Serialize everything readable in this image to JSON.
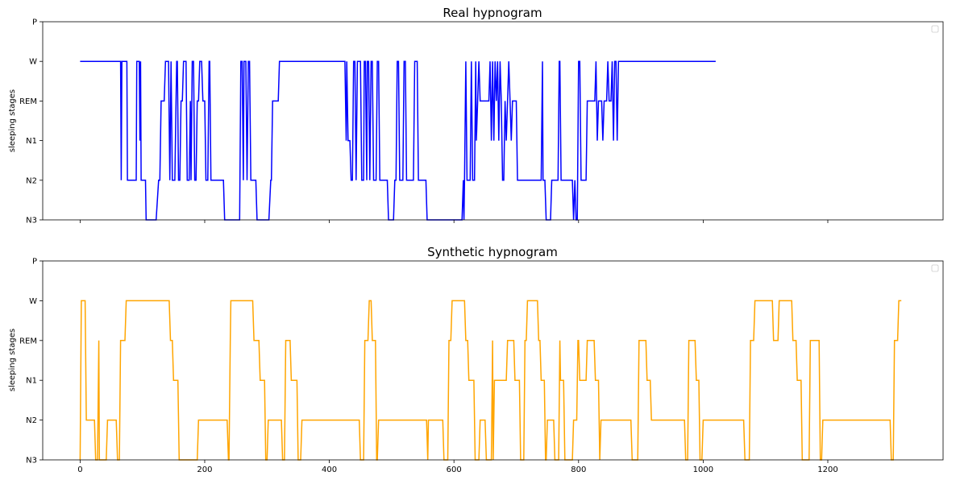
{
  "chart_data": [
    {
      "type": "line",
      "title": "Real hypnogram",
      "ylabel": "sleeping stages",
      "yticks": [
        "P",
        "W",
        "REM",
        "N1",
        "N2",
        "N3"
      ],
      "xlim": [
        -60,
        1385
      ],
      "xticks": [
        0,
        200,
        400,
        600,
        800,
        1000,
        1200
      ],
      "show_xtick_labels": false,
      "legend": "top-right (empty)",
      "grid": false,
      "color": "#0000ff",
      "points": [
        [
          0,
          "W"
        ],
        [
          65,
          "W"
        ],
        [
          66,
          "N2"
        ],
        [
          67,
          "W"
        ],
        [
          75,
          "W"
        ],
        [
          76,
          "N2"
        ],
        [
          90,
          "N2"
        ],
        [
          91,
          "W"
        ],
        [
          95,
          "W"
        ],
        [
          96,
          "N1"
        ],
        [
          97,
          "W"
        ],
        [
          98,
          "N2"
        ],
        [
          105,
          "N2"
        ],
        [
          106,
          "N3"
        ],
        [
          122,
          "N3"
        ],
        [
          126,
          "N2"
        ],
        [
          128,
          "N2"
        ],
        [
          130,
          "REM"
        ],
        [
          135,
          "REM"
        ],
        [
          137,
          "W"
        ],
        [
          142,
          "W"
        ],
        [
          144,
          "N2"
        ],
        [
          146,
          "W"
        ],
        [
          148,
          "N2"
        ],
        [
          152,
          "N2"
        ],
        [
          154,
          "REM"
        ],
        [
          155,
          "W"
        ],
        [
          156,
          "W"
        ],
        [
          158,
          "N2"
        ],
        [
          160,
          "N2"
        ],
        [
          162,
          "REM"
        ],
        [
          164,
          "REM"
        ],
        [
          166,
          "W"
        ],
        [
          170,
          "W"
        ],
        [
          172,
          "N2"
        ],
        [
          175,
          "N2"
        ],
        [
          177,
          "REM"
        ],
        [
          178,
          "N2"
        ],
        [
          180,
          "W"
        ],
        [
          182,
          "W"
        ],
        [
          184,
          "N2"
        ],
        [
          186,
          "N2"
        ],
        [
          188,
          "REM"
        ],
        [
          190,
          "REM"
        ],
        [
          192,
          "W"
        ],
        [
          195,
          "W"
        ],
        [
          197,
          "REM"
        ],
        [
          200,
          "REM"
        ],
        [
          202,
          "N2"
        ],
        [
          205,
          "N2"
        ],
        [
          207,
          "W"
        ],
        [
          208,
          "W"
        ],
        [
          210,
          "N2"
        ],
        [
          230,
          "N2"
        ],
        [
          232,
          "N3"
        ],
        [
          256,
          "N3"
        ],
        [
          258,
          "W"
        ],
        [
          260,
          "W"
        ],
        [
          262,
          "N2"
        ],
        [
          263,
          "W"
        ],
        [
          266,
          "W"
        ],
        [
          268,
          "N2"
        ],
        [
          270,
          "W"
        ],
        [
          272,
          "W"
        ],
        [
          274,
          "N2"
        ],
        [
          282,
          "N2"
        ],
        [
          284,
          "N3"
        ],
        [
          303,
          "N3"
        ],
        [
          306,
          "N2"
        ],
        [
          307,
          "N2"
        ],
        [
          309,
          "REM"
        ],
        [
          318,
          "REM"
        ],
        [
          320,
          "W"
        ],
        [
          425,
          "W"
        ],
        [
          427,
          "N1"
        ],
        [
          428,
          "W"
        ],
        [
          430,
          "N1"
        ],
        [
          433,
          "N1"
        ],
        [
          435,
          "N2"
        ],
        [
          437,
          "N2"
        ],
        [
          439,
          "W"
        ],
        [
          441,
          "W"
        ],
        [
          443,
          "N2"
        ],
        [
          445,
          "W"
        ],
        [
          450,
          "W"
        ],
        [
          452,
          "N2"
        ],
        [
          455,
          "N2"
        ],
        [
          456,
          "W"
        ],
        [
          458,
          "W"
        ],
        [
          460,
          "N2"
        ],
        [
          461,
          "W"
        ],
        [
          463,
          "W"
        ],
        [
          465,
          "N2"
        ],
        [
          467,
          "W"
        ],
        [
          469,
          "W"
        ],
        [
          471,
          "N2"
        ],
        [
          475,
          "N2"
        ],
        [
          477,
          "W"
        ],
        [
          479,
          "W"
        ],
        [
          481,
          "N2"
        ],
        [
          493,
          "N2"
        ],
        [
          495,
          "N3"
        ],
        [
          503,
          "N3"
        ],
        [
          505,
          "N2"
        ],
        [
          507,
          "N2"
        ],
        [
          509,
          "W"
        ],
        [
          511,
          "W"
        ],
        [
          513,
          "N2"
        ],
        [
          518,
          "N2"
        ],
        [
          520,
          "W"
        ],
        [
          522,
          "W"
        ],
        [
          524,
          "N2"
        ],
        [
          535,
          "N2"
        ],
        [
          537,
          "W"
        ],
        [
          541,
          "W"
        ],
        [
          543,
          "N2"
        ],
        [
          555,
          "N2"
        ],
        [
          557,
          "N3"
        ],
        [
          613,
          "N3"
        ],
        [
          615,
          "N2"
        ],
        [
          616,
          "N3"
        ],
        [
          617,
          "N2"
        ],
        [
          619,
          "W"
        ],
        [
          621,
          "N2"
        ],
        [
          626,
          "N2"
        ],
        [
          628,
          "W"
        ],
        [
          630,
          "N2"
        ],
        [
          633,
          "N2"
        ],
        [
          635,
          "W"
        ],
        [
          636,
          "N1"
        ],
        [
          638,
          "REM"
        ],
        [
          640,
          "W"
        ],
        [
          642,
          "REM"
        ],
        [
          656,
          "REM"
        ],
        [
          658,
          "W"
        ],
        [
          660,
          "N1"
        ],
        [
          662,
          "W"
        ],
        [
          664,
          "N1"
        ],
        [
          666,
          "W"
        ],
        [
          668,
          "REM"
        ],
        [
          670,
          "W"
        ],
        [
          672,
          "N1"
        ],
        [
          674,
          "W"
        ],
        [
          676,
          "REM"
        ],
        [
          678,
          "N2"
        ],
        [
          680,
          "N2"
        ],
        [
          682,
          "REM"
        ],
        [
          684,
          "N1"
        ],
        [
          686,
          "REM"
        ],
        [
          688,
          "W"
        ],
        [
          690,
          "REM"
        ],
        [
          692,
          "N1"
        ],
        [
          694,
          "REM"
        ],
        [
          700,
          "REM"
        ],
        [
          702,
          "N2"
        ],
        [
          740,
          "N2"
        ],
        [
          742,
          "W"
        ],
        [
          743,
          "N2"
        ],
        [
          746,
          "N2"
        ],
        [
          748,
          "N3"
        ],
        [
          755,
          "N3"
        ],
        [
          757,
          "N2"
        ],
        [
          767,
          "N2"
        ],
        [
          769,
          "W"
        ],
        [
          770,
          "W"
        ],
        [
          772,
          "N2"
        ],
        [
          790,
          "N2"
        ],
        [
          792,
          "N3"
        ],
        [
          794,
          "N2"
        ],
        [
          796,
          "N3"
        ],
        [
          798,
          "N3"
        ],
        [
          800,
          "W"
        ],
        [
          802,
          "W"
        ],
        [
          804,
          "N2"
        ],
        [
          812,
          "N2"
        ],
        [
          814,
          "REM"
        ],
        [
          826,
          "REM"
        ],
        [
          828,
          "W"
        ],
        [
          830,
          "N1"
        ],
        [
          832,
          "REM"
        ],
        [
          837,
          "REM"
        ],
        [
          839,
          "N1"
        ],
        [
          841,
          "REM"
        ],
        [
          845,
          "REM"
        ],
        [
          847,
          "W"
        ],
        [
          849,
          "REM"
        ],
        [
          852,
          "REM"
        ],
        [
          854,
          "W"
        ],
        [
          856,
          "N1"
        ],
        [
          858,
          "W"
        ],
        [
          860,
          "W"
        ],
        [
          862,
          "N1"
        ],
        [
          864,
          "W"
        ],
        [
          1020,
          "W"
        ]
      ]
    },
    {
      "type": "line",
      "title": "Synthetic hypnogram",
      "ylabel": "sleeping stages",
      "yticks": [
        "P",
        "W",
        "REM",
        "N1",
        "N2",
        "N3"
      ],
      "xlim": [
        -60,
        1385
      ],
      "xticks": [
        0,
        200,
        400,
        600,
        800,
        1000,
        1200
      ],
      "show_xtick_labels": true,
      "legend": "top-right (empty)",
      "grid": false,
      "color": "#ffa500",
      "points": [
        [
          0,
          "N3"
        ],
        [
          2,
          "W"
        ],
        [
          8,
          "W"
        ],
        [
          10,
          "N2"
        ],
        [
          23,
          "N2"
        ],
        [
          25,
          "N3"
        ],
        [
          28,
          "N3"
        ],
        [
          30,
          "REM"
        ],
        [
          31,
          "N3"
        ],
        [
          42,
          "N3"
        ],
        [
          44,
          "N2"
        ],
        [
          58,
          "N2"
        ],
        [
          60,
          "N3"
        ],
        [
          63,
          "N3"
        ],
        [
          65,
          "REM"
        ],
        [
          72,
          "REM"
        ],
        [
          74,
          "W"
        ],
        [
          143,
          "W"
        ],
        [
          145,
          "REM"
        ],
        [
          148,
          "REM"
        ],
        [
          150,
          "N1"
        ],
        [
          157,
          "N1"
        ],
        [
          159,
          "N3"
        ],
        [
          188,
          "N3"
        ],
        [
          190,
          "N2"
        ],
        [
          236,
          "N2"
        ],
        [
          238,
          "N3"
        ],
        [
          239,
          "N3"
        ],
        [
          241,
          "REM"
        ],
        [
          242,
          "W"
        ],
        [
          277,
          "W"
        ],
        [
          279,
          "REM"
        ],
        [
          287,
          "REM"
        ],
        [
          289,
          "N1"
        ],
        [
          296,
          "N1"
        ],
        [
          298,
          "N3"
        ],
        [
          300,
          "N3"
        ],
        [
          302,
          "N2"
        ],
        [
          323,
          "N2"
        ],
        [
          325,
          "N3"
        ],
        [
          328,
          "N3"
        ],
        [
          330,
          "REM"
        ],
        [
          337,
          "REM"
        ],
        [
          339,
          "N1"
        ],
        [
          348,
          "N1"
        ],
        [
          350,
          "N3"
        ],
        [
          354,
          "N3"
        ],
        [
          356,
          "N2"
        ],
        [
          448,
          "N2"
        ],
        [
          450,
          "N3"
        ],
        [
          455,
          "N3"
        ],
        [
          457,
          "REM"
        ],
        [
          462,
          "REM"
        ],
        [
          464,
          "W"
        ],
        [
          467,
          "W"
        ],
        [
          469,
          "REM"
        ],
        [
          474,
          "REM"
        ],
        [
          476,
          "N3"
        ],
        [
          477,
          "N3"
        ],
        [
          479,
          "N2"
        ],
        [
          556,
          "N2"
        ],
        [
          558,
          "N3"
        ],
        [
          559,
          "N2"
        ],
        [
          582,
          "N2"
        ],
        [
          584,
          "N3"
        ],
        [
          590,
          "N3"
        ],
        [
          592,
          "REM"
        ],
        [
          595,
          "REM"
        ],
        [
          597,
          "W"
        ],
        [
          617,
          "W"
        ],
        [
          619,
          "REM"
        ],
        [
          622,
          "REM"
        ],
        [
          624,
          "N1"
        ],
        [
          632,
          "N1"
        ],
        [
          634,
          "N3"
        ],
        [
          640,
          "N3"
        ],
        [
          642,
          "N2"
        ],
        [
          650,
          "N2"
        ],
        [
          652,
          "N3"
        ],
        [
          660,
          "N3"
        ],
        [
          662,
          "REM"
        ],
        [
          663,
          "N3"
        ],
        [
          665,
          "N1"
        ],
        [
          684,
          "N1"
        ],
        [
          686,
          "REM"
        ],
        [
          696,
          "REM"
        ],
        [
          698,
          "N1"
        ],
        [
          705,
          "N1"
        ],
        [
          707,
          "N3"
        ],
        [
          712,
          "N3"
        ],
        [
          714,
          "REM"
        ],
        [
          716,
          "REM"
        ],
        [
          718,
          "W"
        ],
        [
          734,
          "W"
        ],
        [
          736,
          "REM"
        ],
        [
          738,
          "REM"
        ],
        [
          740,
          "N1"
        ],
        [
          745,
          "N1"
        ],
        [
          747,
          "N3"
        ],
        [
          748,
          "N3"
        ],
        [
          750,
          "N2"
        ],
        [
          760,
          "N2"
        ],
        [
          762,
          "N3"
        ],
        [
          768,
          "N3"
        ],
        [
          770,
          "REM"
        ],
        [
          771,
          "N1"
        ],
        [
          776,
          "N1"
        ],
        [
          778,
          "N3"
        ],
        [
          790,
          "N3"
        ],
        [
          792,
          "N2"
        ],
        [
          797,
          "N2"
        ],
        [
          799,
          "REM"
        ],
        [
          800,
          "REM"
        ],
        [
          802,
          "N1"
        ],
        [
          812,
          "N1"
        ],
        [
          814,
          "REM"
        ],
        [
          825,
          "REM"
        ],
        [
          827,
          "N1"
        ],
        [
          832,
          "N1"
        ],
        [
          834,
          "N3"
        ],
        [
          836,
          "N2"
        ],
        [
          884,
          "N2"
        ],
        [
          886,
          "N3"
        ],
        [
          895,
          "N3"
        ],
        [
          897,
          "REM"
        ],
        [
          908,
          "REM"
        ],
        [
          910,
          "N1"
        ],
        [
          915,
          "N1"
        ],
        [
          917,
          "N2"
        ],
        [
          970,
          "N2"
        ],
        [
          972,
          "N3"
        ],
        [
          975,
          "N3"
        ],
        [
          977,
          "REM"
        ],
        [
          987,
          "REM"
        ],
        [
          989,
          "N1"
        ],
        [
          993,
          "N1"
        ],
        [
          995,
          "N3"
        ],
        [
          998,
          "N3"
        ],
        [
          1000,
          "N2"
        ],
        [
          1065,
          "N2"
        ],
        [
          1067,
          "N3"
        ],
        [
          1074,
          "N3"
        ],
        [
          1076,
          "REM"
        ],
        [
          1081,
          "REM"
        ],
        [
          1083,
          "W"
        ],
        [
          1111,
          "W"
        ],
        [
          1113,
          "REM"
        ],
        [
          1120,
          "REM"
        ],
        [
          1122,
          "W"
        ],
        [
          1142,
          "W"
        ],
        [
          1144,
          "REM"
        ],
        [
          1149,
          "REM"
        ],
        [
          1151,
          "N1"
        ],
        [
          1157,
          "N1"
        ],
        [
          1159,
          "N3"
        ],
        [
          1170,
          "N3"
        ],
        [
          1172,
          "REM"
        ],
        [
          1186,
          "REM"
        ],
        [
          1188,
          "N3"
        ],
        [
          1190,
          "N3"
        ],
        [
          1192,
          "N2"
        ],
        [
          1300,
          "N2"
        ],
        [
          1302,
          "N3"
        ],
        [
          1305,
          "N3"
        ],
        [
          1307,
          "REM"
        ],
        [
          1312,
          "REM"
        ],
        [
          1314,
          "W"
        ],
        [
          1318,
          "W"
        ]
      ]
    }
  ]
}
